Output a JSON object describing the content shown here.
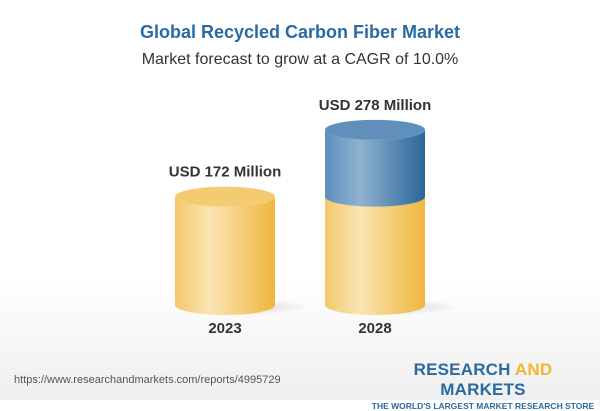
{
  "title": "Global Recycled Carbon Fiber Market",
  "subtitle": "Market forecast to grow at a CAGR of 10.0%",
  "chart_data": {
    "type": "bar",
    "style": "3d-cylinder",
    "categories": [
      "2023",
      "2028"
    ],
    "values": [
      172,
      278
    ],
    "data_labels": [
      "USD 172 Million",
      "USD 278 Million"
    ],
    "unit": "USD Million",
    "colors": {
      "base": "#f2c35a",
      "growth": "#3f78aa"
    },
    "grid": false
  },
  "footer": {
    "url": "https://www.researchandmarkets.com/reports/4995729",
    "logo_part1": "RESEARCH ",
    "logo_part2": "AND",
    "logo_part3": " MARKETS",
    "tagline": "THE WORLD'S LARGEST MARKET RESEARCH STORE"
  }
}
